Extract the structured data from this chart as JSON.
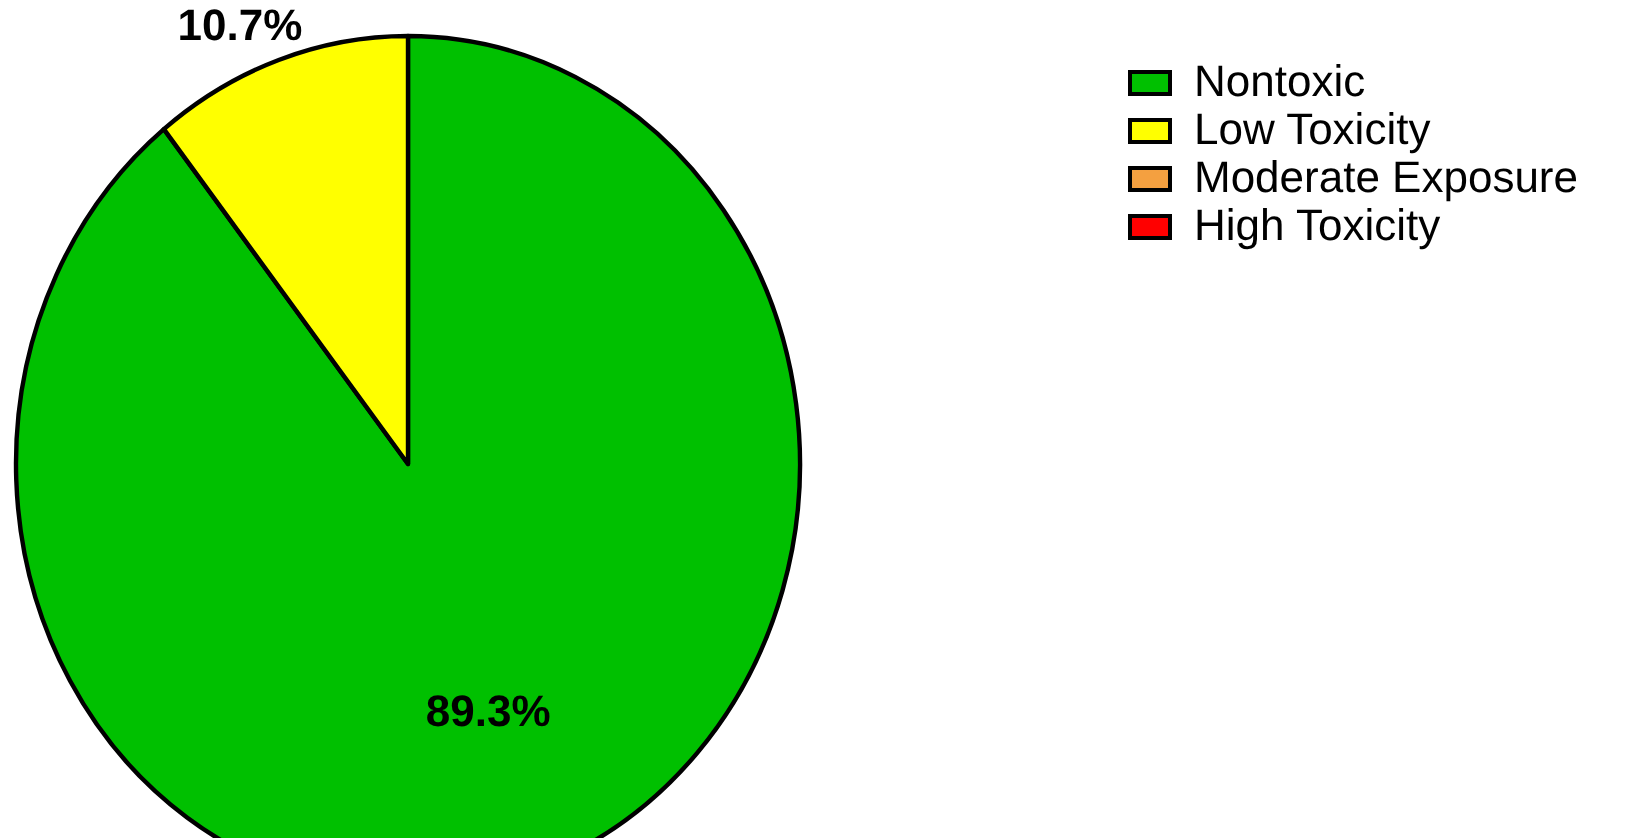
{
  "chart_data": {
    "type": "pie",
    "categories": [
      "Nontoxic",
      "Low Toxicity",
      "Moderate Exposure",
      "High Toxicity"
    ],
    "values": [
      89.3,
      10.7,
      0,
      0
    ],
    "colors": [
      "#00c000",
      "#ffff00",
      "#f4a040",
      "#ff0000"
    ],
    "value_labels": [
      "89.3%",
      "10.7%",
      null,
      null
    ],
    "legend": "right"
  }
}
